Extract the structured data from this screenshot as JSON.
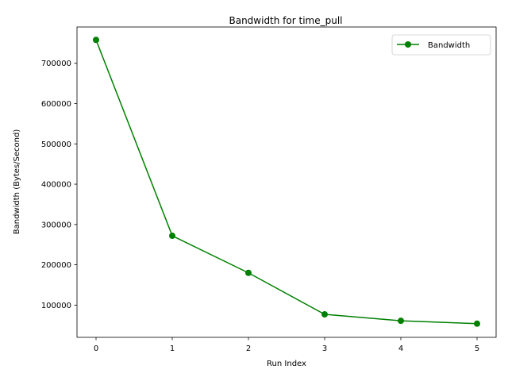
{
  "chart_data": {
    "type": "line",
    "title": "Bandwidth for time_pull",
    "xlabel": "Run Index",
    "ylabel": "Bandwidth (Bytes/Second)",
    "x": [
      0,
      1,
      2,
      3,
      4,
      5
    ],
    "xlim": [
      -0.25,
      5.25
    ],
    "ylim": [
      20000,
      790000
    ],
    "xticks": [
      0,
      1,
      2,
      3,
      4,
      5
    ],
    "yticks": [
      100000,
      200000,
      300000,
      400000,
      500000,
      600000,
      700000
    ],
    "grid": false,
    "legend_position": "top-right",
    "series": [
      {
        "name": "Bandwidth",
        "color": "#008000",
        "marker": "circle",
        "values": [
          758000,
          272000,
          180000,
          77000,
          61000,
          54000
        ]
      }
    ]
  }
}
